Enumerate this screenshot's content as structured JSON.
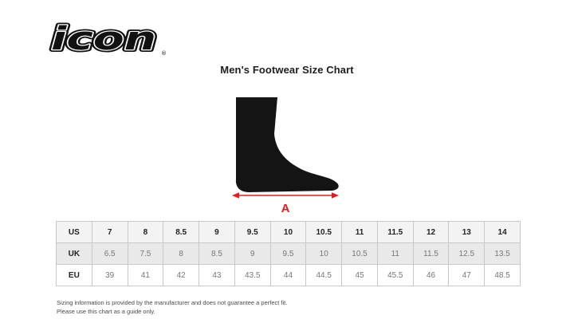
{
  "logo": {
    "text": "icon",
    "registered": "®"
  },
  "title": "Men's Footwear Size Chart",
  "diagram": {
    "arrow_label": "A",
    "arrow_color": "#e8191f",
    "foot_color": "#141414"
  },
  "chart_data": {
    "type": "table",
    "title": "Men's Footwear Size Chart",
    "series": [
      {
        "name": "US",
        "values": [
          "7",
          "8",
          "8.5",
          "9",
          "9.5",
          "10",
          "10.5",
          "11",
          "11.5",
          "12",
          "13",
          "14"
        ]
      },
      {
        "name": "UK",
        "values": [
          "6.5",
          "7.5",
          "8",
          "8.5",
          "9",
          "9.5",
          "10",
          "10.5",
          "11",
          "11.5",
          "12.5",
          "13.5"
        ]
      },
      {
        "name": "EU",
        "values": [
          "39",
          "41",
          "42",
          "43",
          "43.5",
          "44",
          "44.5",
          "45",
          "45.5",
          "46",
          "47",
          "48.5"
        ]
      }
    ],
    "layout": {
      "row_backgrounds": [
        "#f3f3f3",
        "#e9e9e9",
        "#ffffff"
      ],
      "border_color": "#c8c8c8"
    }
  },
  "footnote": {
    "line1": "Sizing information is provided by the manufacturer and does not guarantee a perfect fit.",
    "line2": "Please use this chart as a guide only."
  }
}
